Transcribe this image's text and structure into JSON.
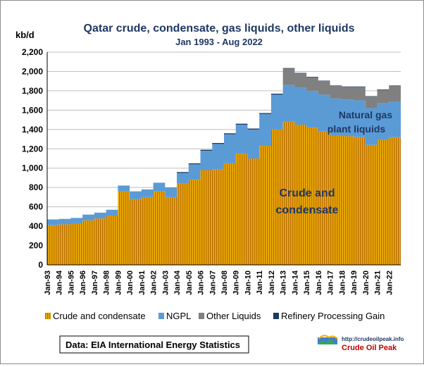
{
  "chart_data": {
    "type": "area",
    "title": "Qatar crude, condensate, gas liquids, other liquids",
    "subtitle": "Jan 1993 - Aug 2022",
    "ylabel": "kb/d",
    "xlabel": "",
    "ylim": [
      0,
      2200
    ],
    "yticks": [
      "0",
      "200",
      "400",
      "600",
      "800",
      "1,000",
      "1,200",
      "1,400",
      "1,600",
      "1,800",
      "2,000",
      "2,200"
    ],
    "xtick_labels": [
      "Jan-93",
      "Jan-94",
      "Jan-95",
      "Jan-96",
      "Jan-97",
      "Jan-98",
      "Jan-99",
      "Jan-00",
      "Jan-01",
      "Jan-02",
      "Jan-03",
      "Jan-04",
      "Jan-05",
      "Jan-06",
      "Jan-07",
      "Jan-08",
      "Jan-09",
      "Jan-10",
      "Jan-11",
      "Jan-12",
      "Jan-13",
      "Jan-14",
      "Jan-15",
      "Jan-16",
      "Jan-17",
      "Jan-18",
      "Jan-19",
      "Jan-20",
      "Jan-21",
      "Jan-22"
    ],
    "grid": true,
    "legend_position": "bottom",
    "series": [
      {
        "name": "Crude and condensate",
        "color": "#d9960d",
        "values": [
          410,
          420,
          430,
          460,
          480,
          510,
          760,
          680,
          700,
          760,
          700,
          840,
          880,
          980,
          990,
          1050,
          1150,
          1100,
          1230,
          1400,
          1480,
          1450,
          1420,
          1380,
          1340,
          1330,
          1320,
          1240,
          1290,
          1320
        ]
      },
      {
        "name": "NGPL",
        "color": "#5b9bd5",
        "values": [
          60,
          55,
          55,
          60,
          60,
          60,
          60,
          80,
          80,
          90,
          100,
          110,
          160,
          200,
          260,
          300,
          300,
          300,
          330,
          360,
          380,
          380,
          380,
          380,
          380,
          380,
          380,
          380,
          380,
          370
        ]
      },
      {
        "name": "Other Liquids",
        "color": "#808080",
        "values": [
          0,
          0,
          0,
          0,
          0,
          0,
          0,
          0,
          0,
          0,
          0,
          0,
          0,
          0,
          0,
          0,
          0,
          0,
          0,
          0,
          170,
          150,
          140,
          140,
          130,
          130,
          140,
          120,
          140,
          160
        ]
      },
      {
        "name": "Refinery Processing Gain",
        "color": "#1f3864",
        "values": [
          0,
          0,
          0,
          0,
          0,
          0,
          0,
          0,
          0,
          0,
          0,
          10,
          10,
          10,
          10,
          10,
          10,
          10,
          10,
          10,
          5,
          5,
          5,
          5,
          5,
          5,
          5,
          5,
          5,
          5
        ]
      }
    ],
    "annotations": [
      {
        "text_lines": [
          "Natural gas",
          "plant liquids"
        ],
        "color": "#1f3864"
      },
      {
        "text_lines": [
          "Crude and",
          "condensate"
        ],
        "color": "#1f3864"
      }
    ]
  },
  "source_note": "Data: EIA International Energy Statistics",
  "logo": {
    "url_text": "http://crudeoilpeak.info",
    "name": "Crude Oil Peak"
  }
}
